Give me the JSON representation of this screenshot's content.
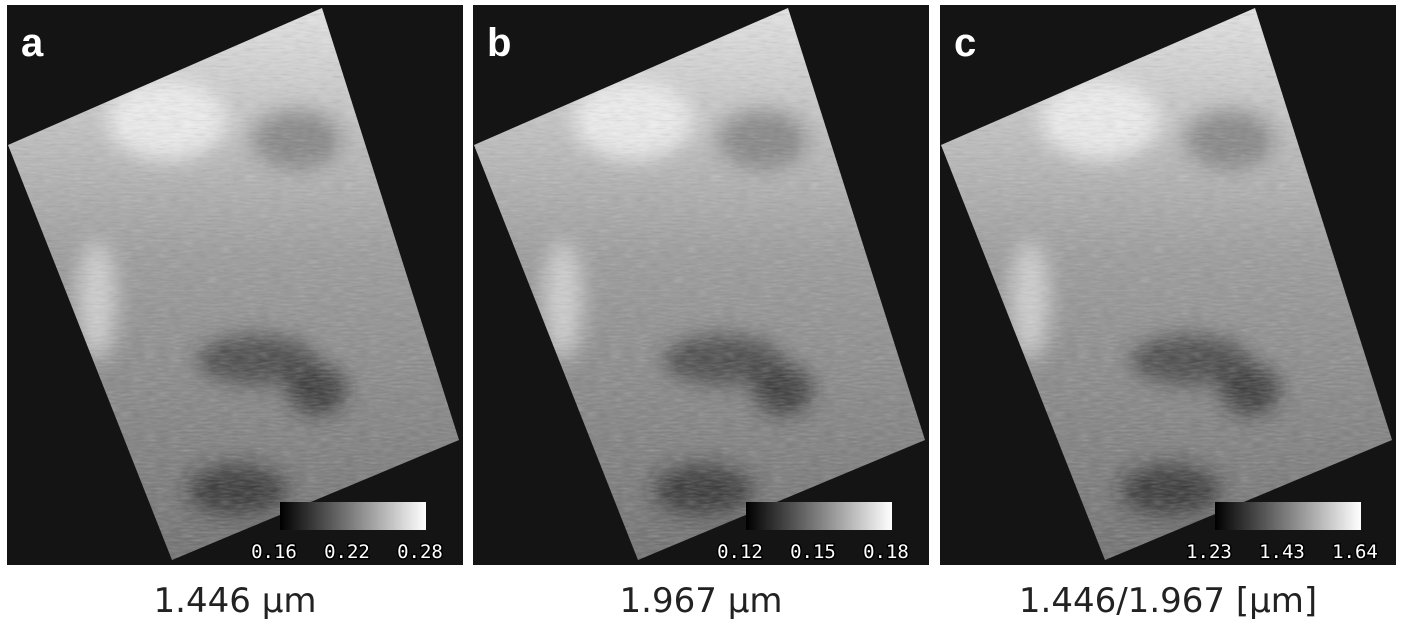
{
  "panels": [
    {
      "label": "a",
      "caption": "1.446 µm",
      "colorbar": {
        "ticks": [
          "0.16",
          "0.22",
          "0.28"
        ]
      }
    },
    {
      "label": "b",
      "caption": "1.967 µm",
      "colorbar": {
        "ticks": [
          "0.12",
          "0.15",
          "0.18"
        ]
      }
    },
    {
      "label": "c",
      "caption": "1.446/1.967 [µm]",
      "colorbar": {
        "ticks": [
          "1.23",
          "1.43",
          "1.64"
        ]
      }
    }
  ]
}
